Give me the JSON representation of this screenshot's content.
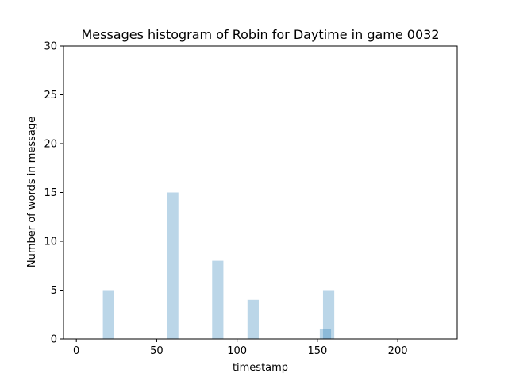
{
  "chart_data": {
    "type": "bar",
    "title": "Messages histogram of Robin for Daytime in game 0032",
    "xlabel": "timestamp",
    "ylabel": "Number of words in message",
    "xlim": [
      -8,
      237
    ],
    "ylim": [
      0,
      30
    ],
    "xticks": [
      0,
      50,
      100,
      150,
      200
    ],
    "yticks": [
      0,
      5,
      10,
      15,
      20,
      25,
      30
    ],
    "bar_width": 7,
    "grid": false,
    "bar_color": "#1f77b4",
    "bars": [
      {
        "x": 20,
        "value": 5
      },
      {
        "x": 60,
        "value": 15
      },
      {
        "x": 88,
        "value": 8
      },
      {
        "x": 110,
        "value": 4
      },
      {
        "x": 155,
        "value": 1
      },
      {
        "x": 157,
        "value": 5
      }
    ]
  }
}
